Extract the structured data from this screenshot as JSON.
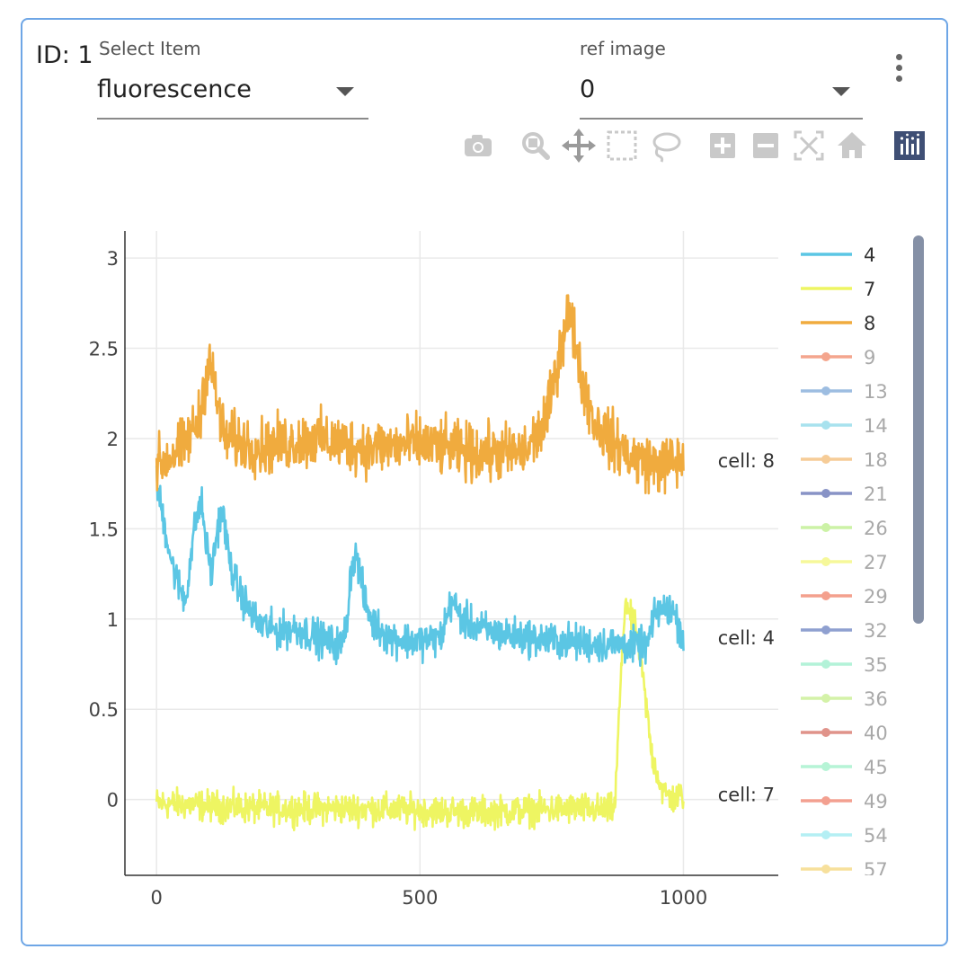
{
  "card": {
    "id_label": "ID: 1",
    "select_item": {
      "label": "Select Item",
      "value": "fluorescence"
    },
    "ref_image": {
      "label": "ref image",
      "value": "0"
    }
  },
  "toolbar": {
    "buttons": [
      "camera-icon",
      "zoom-icon",
      "pan-icon",
      "box-select-icon",
      "lasso-select-icon",
      "zoom-in-icon",
      "zoom-out-icon",
      "autoscale-icon",
      "reset-axes-icon",
      "plotly-logo-icon"
    ]
  },
  "chart_data": {
    "type": "line",
    "title": "",
    "xlabel": "",
    "ylabel": "",
    "xlim": [
      -60,
      1180
    ],
    "ylim": [
      -0.42,
      3.15
    ],
    "x_ticks": [
      0,
      500,
      1000
    ],
    "x_tick_labels": [
      "0",
      "500",
      "1000"
    ],
    "y_ticks": [
      0,
      0.5,
      1,
      1.5,
      2,
      2.5,
      3
    ],
    "y_tick_labels": [
      "0",
      "0.5",
      "1",
      "1.5",
      "2",
      "2.5",
      "3"
    ],
    "grid": true,
    "legend_position": "right",
    "n_points": 1000,
    "series": [
      {
        "name": "4",
        "color": "#5bc6e4",
        "end_label": "cell: 4",
        "noise": 0.07,
        "keyframes": [
          [
            0,
            1.75
          ],
          [
            10,
            1.6
          ],
          [
            20,
            1.45
          ],
          [
            30,
            1.3
          ],
          [
            40,
            1.2
          ],
          [
            55,
            1.1
          ],
          [
            65,
            1.35
          ],
          [
            75,
            1.55
          ],
          [
            85,
            1.65
          ],
          [
            95,
            1.4
          ],
          [
            105,
            1.25
          ],
          [
            115,
            1.5
          ],
          [
            125,
            1.6
          ],
          [
            140,
            1.3
          ],
          [
            150,
            1.2
          ],
          [
            170,
            1.08
          ],
          [
            190,
            0.98
          ],
          [
            230,
            0.93
          ],
          [
            260,
            0.95
          ],
          [
            290,
            0.92
          ],
          [
            320,
            0.88
          ],
          [
            350,
            0.85
          ],
          [
            360,
            0.95
          ],
          [
            370,
            1.3
          ],
          [
            380,
            1.35
          ],
          [
            395,
            1.1
          ],
          [
            410,
            0.98
          ],
          [
            440,
            0.9
          ],
          [
            480,
            0.88
          ],
          [
            510,
            0.88
          ],
          [
            540,
            0.9
          ],
          [
            560,
            1.1
          ],
          [
            580,
            1.0
          ],
          [
            610,
            0.95
          ],
          [
            650,
            0.92
          ],
          [
            700,
            0.9
          ],
          [
            750,
            0.88
          ],
          [
            800,
            0.87
          ],
          [
            840,
            0.86
          ],
          [
            880,
            0.86
          ],
          [
            900,
            0.85
          ],
          [
            930,
            0.85
          ],
          [
            950,
            1.05
          ],
          [
            980,
            1.05
          ],
          [
            1000,
            0.9
          ]
        ]
      },
      {
        "name": "7",
        "color": "#eef562",
        "end_label": "cell: 7",
        "noise": 0.06,
        "keyframes": [
          [
            0,
            -0.02
          ],
          [
            200,
            -0.05
          ],
          [
            400,
            -0.05
          ],
          [
            600,
            -0.07
          ],
          [
            800,
            -0.05
          ],
          [
            860,
            -0.06
          ],
          [
            870,
            -0.04
          ],
          [
            880,
            0.6
          ],
          [
            890,
            1.12
          ],
          [
            900,
            1.0
          ],
          [
            910,
            0.95
          ],
          [
            920,
            0.75
          ],
          [
            940,
            0.25
          ],
          [
            960,
            0.05
          ],
          [
            980,
            0.0
          ],
          [
            1000,
            0.03
          ]
        ]
      },
      {
        "name": "8",
        "color": "#f0ab3e",
        "end_label": "cell: 8",
        "noise": 0.11,
        "keyframes": [
          [
            0,
            1.85
          ],
          [
            50,
            1.95
          ],
          [
            80,
            2.1
          ],
          [
            100,
            2.45
          ],
          [
            115,
            2.2
          ],
          [
            130,
            2.0
          ],
          [
            200,
            1.95
          ],
          [
            300,
            2.0
          ],
          [
            400,
            1.95
          ],
          [
            500,
            1.97
          ],
          [
            600,
            1.92
          ],
          [
            700,
            1.92
          ],
          [
            740,
            2.1
          ],
          [
            760,
            2.4
          ],
          [
            780,
            2.7
          ],
          [
            795,
            2.55
          ],
          [
            810,
            2.3
          ],
          [
            830,
            2.1
          ],
          [
            860,
            2.0
          ],
          [
            900,
            1.9
          ],
          [
            950,
            1.85
          ],
          [
            1000,
            1.88
          ]
        ]
      }
    ],
    "legend": [
      {
        "name": "4",
        "color": "#5bc6e4",
        "visible": true
      },
      {
        "name": "7",
        "color": "#eef562",
        "visible": true
      },
      {
        "name": "8",
        "color": "#f0ab3e",
        "visible": true
      },
      {
        "name": "9",
        "color": "#f4a58d",
        "visible": false
      },
      {
        "name": "13",
        "color": "#9dbde1",
        "visible": false
      },
      {
        "name": "14",
        "color": "#a8e2ee",
        "visible": false
      },
      {
        "name": "18",
        "color": "#f6cc97",
        "visible": false
      },
      {
        "name": "21",
        "color": "#8893c6",
        "visible": false
      },
      {
        "name": "26",
        "color": "#ccf2a6",
        "visible": false
      },
      {
        "name": "27",
        "color": "#f6f89a",
        "visible": false
      },
      {
        "name": "29",
        "color": "#f4a08d",
        "visible": false
      },
      {
        "name": "32",
        "color": "#8fa0d0",
        "visible": false
      },
      {
        "name": "35",
        "color": "#b3f2d8",
        "visible": false
      },
      {
        "name": "36",
        "color": "#d4f2a8",
        "visible": false
      },
      {
        "name": "40",
        "color": "#e0938a",
        "visible": false
      },
      {
        "name": "45",
        "color": "#b6f4d6",
        "visible": false
      },
      {
        "name": "49",
        "color": "#f3a090",
        "visible": false
      },
      {
        "name": "54",
        "color": "#b4eff4",
        "visible": false
      },
      {
        "name": "57",
        "color": "#f7e09c",
        "visible": false
      }
    ]
  }
}
